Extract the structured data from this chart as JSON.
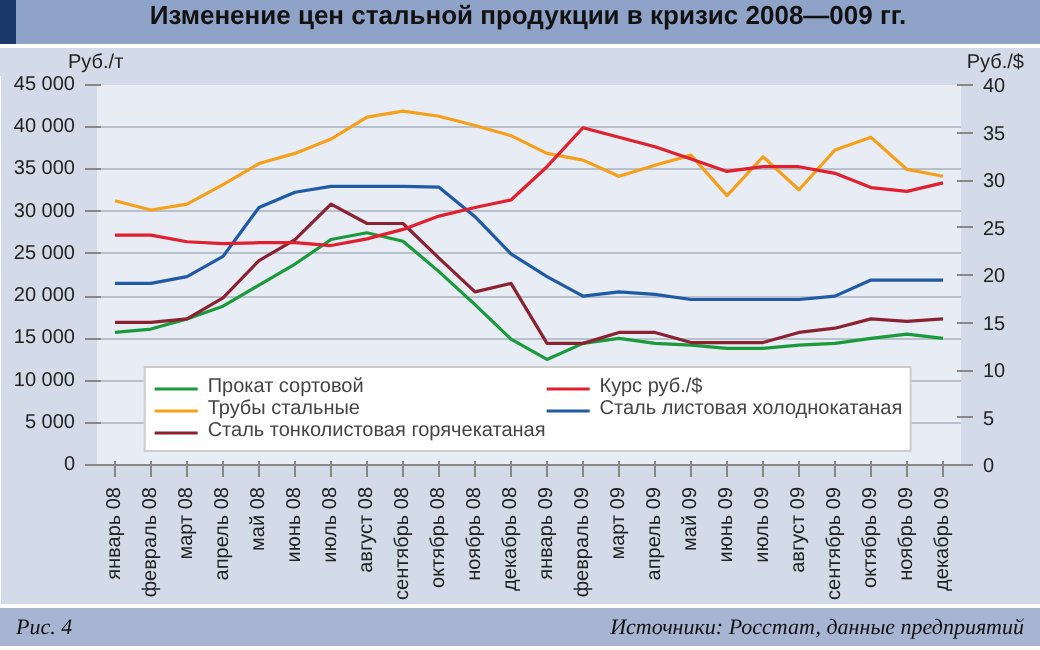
{
  "chart_data": {
    "type": "line",
    "title": "Изменение цен стальной продукции в кризис 2008—009 гг.",
    "ylabel": "Руб./т",
    "y2label": "Руб./$",
    "annotations": [
      "Рис. 4",
      "Источники: Росстат, данные предприятий"
    ],
    "categories": [
      "январь 08",
      "февраль 08",
      "март 08",
      "апрель 08",
      "май 08",
      "июнь 08",
      "июль 08",
      "август 08",
      "сентябрь 08",
      "октябрь 08",
      "ноябрь 08",
      "декабрь 08",
      "январь 09",
      "февраль 09",
      "март 09",
      "апрель 09",
      "май 09",
      "июнь 09",
      "июль 09",
      "август 09",
      "сентябрь 09",
      "октябрь 09",
      "ноябрь 09",
      "декабрь 09"
    ],
    "series": [
      {
        "name": "Прокат сортовой",
        "color": "#1a9a3a",
        "values": [
          15700,
          16100,
          17300,
          18800,
          21300,
          23800,
          26700,
          27500,
          26500,
          22900,
          19000,
          14900,
          12500,
          14400,
          15000,
          14400,
          14200,
          13800,
          13800,
          14200,
          14400,
          15000,
          15500,
          15000
        ]
      },
      {
        "name": "Сталь тонколистовая горячекатаная",
        "color": "#8b2232",
        "values": [
          16900,
          16900,
          17300,
          19800,
          24200,
          26700,
          30900,
          28600,
          28600,
          24500,
          20500,
          21500,
          14400,
          14400,
          15700,
          15700,
          14500,
          14500,
          14500,
          15700,
          16200,
          17300,
          17000,
          17300
        ]
      },
      {
        "name": "Сталь листовая холоднокатаная",
        "color": "#1f5aa6",
        "values": [
          21500,
          21500,
          22300,
          24700,
          30500,
          32300,
          33000,
          33000,
          33000,
          32900,
          29400,
          25000,
          22300,
          20000,
          20500,
          20200,
          19600,
          19600,
          19600,
          19600,
          20000,
          21900,
          21900,
          21900
        ]
      },
      {
        "name": "Трубы стальные",
        "color": "#f5a01a",
        "values": [
          31300,
          30200,
          30900,
          33200,
          35700,
          36900,
          38600,
          41200,
          41900,
          41300,
          40200,
          39000,
          36900,
          36100,
          34200,
          35500,
          36700,
          31900,
          36500,
          32600,
          37300,
          38800,
          35000,
          34200
        ]
      },
      {
        "name": "Курс руб./$",
        "color": "#e0202e",
        "axis": "y2",
        "values": [
          24.2,
          24.2,
          23.5,
          23.3,
          23.4,
          23.4,
          23.1,
          23.8,
          24.8,
          26.2,
          27.1,
          27.9,
          31.4,
          35.5,
          34.5,
          33.5,
          32.2,
          30.9,
          31.4,
          31.4,
          30.7,
          29.2,
          28.8,
          29.7
        ]
      }
    ],
    "ylim": [
      0,
      45000
    ],
    "yticks": [
      {
        "value": 0,
        "label": "0"
      },
      {
        "value": 5000,
        "label": "5 000"
      },
      {
        "value": 10000,
        "label": "10 000"
      },
      {
        "value": 15000,
        "label": "15 000"
      },
      {
        "value": 20000,
        "label": "20 000"
      },
      {
        "value": 25000,
        "label": "25 000"
      },
      {
        "value": 30000,
        "label": "30 000"
      },
      {
        "value": 35000,
        "label": "35 000"
      },
      {
        "value": 40000,
        "label": "40 000"
      },
      {
        "value": 45000,
        "label": "45 000"
      }
    ],
    "y2lim": [
      0,
      40
    ],
    "y2ticks": [
      0,
      5,
      10,
      15,
      20,
      25,
      30,
      35,
      40
    ],
    "grid": "y",
    "legend": "bottom",
    "marker": "none",
    "line_style": "solid"
  }
}
